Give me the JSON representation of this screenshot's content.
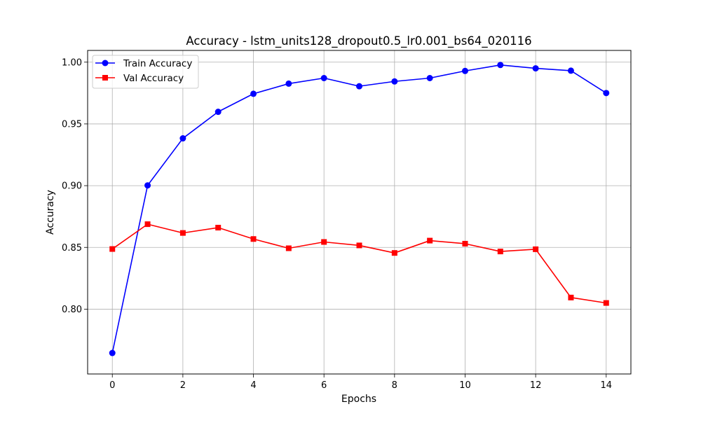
{
  "chart_data": {
    "type": "line",
    "title": "Accuracy - lstm_units128_dropout0.5_lr0.001_bs64_020116",
    "xlabel": "Epochs",
    "ylabel": "Accuracy",
    "x": [
      0,
      1,
      2,
      3,
      4,
      5,
      6,
      7,
      8,
      9,
      10,
      11,
      12,
      13,
      14
    ],
    "xlim": [
      -0.7,
      14.7
    ],
    "ylim": [
      0.7475,
      1.0095
    ],
    "xticks": [
      0,
      2,
      4,
      6,
      8,
      10,
      12,
      14
    ],
    "xtick_labels": [
      "0",
      "2",
      "4",
      "6",
      "8",
      "10",
      "12",
      "14"
    ],
    "yticks": [
      0.8,
      0.85,
      0.9,
      0.95,
      1.0
    ],
    "ytick_labels": [
      "0.80",
      "0.85",
      "0.90",
      "0.95",
      "1.00"
    ],
    "grid": true,
    "legend_position": "upper-left",
    "series": [
      {
        "name": "Train Accuracy",
        "color": "#0000ff",
        "marker": "circle",
        "values": [
          0.7645,
          0.9002,
          0.9383,
          0.9598,
          0.9744,
          0.9826,
          0.9871,
          0.9805,
          0.9844,
          0.9871,
          0.9929,
          0.9977,
          0.995,
          0.9931,
          0.975
        ]
      },
      {
        "name": "Val Accuracy",
        "color": "#ff0000",
        "marker": "square",
        "values": [
          0.8487,
          0.8688,
          0.8617,
          0.866,
          0.8568,
          0.8493,
          0.8544,
          0.8516,
          0.8455,
          0.8555,
          0.853,
          0.8467,
          0.8485,
          0.8094,
          0.805
        ]
      }
    ]
  }
}
